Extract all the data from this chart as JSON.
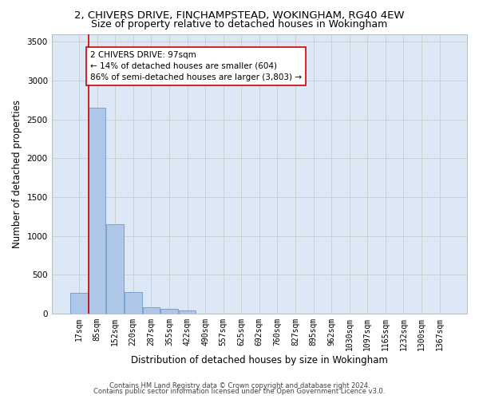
{
  "title1": "2, CHIVERS DRIVE, FINCHAMPSTEAD, WOKINGHAM, RG40 4EW",
  "title2": "Size of property relative to detached houses in Wokingham",
  "xlabel": "Distribution of detached houses by size in Wokingham",
  "ylabel": "Number of detached properties",
  "footnote1": "Contains HM Land Registry data © Crown copyright and database right 2024.",
  "footnote2": "Contains public sector information licensed under the Open Government Licence v3.0.",
  "bin_labels": [
    "17sqm",
    "85sqm",
    "152sqm",
    "220sqm",
    "287sqm",
    "355sqm",
    "422sqm",
    "490sqm",
    "557sqm",
    "625sqm",
    "692sqm",
    "760sqm",
    "827sqm",
    "895sqm",
    "962sqm",
    "1030sqm",
    "1097sqm",
    "1165sqm",
    "1232sqm",
    "1300sqm",
    "1367sqm"
  ],
  "bar_values": [
    270,
    2650,
    1150,
    280,
    80,
    60,
    45,
    0,
    0,
    0,
    0,
    0,
    0,
    0,
    0,
    0,
    0,
    0,
    0,
    0,
    0
  ],
  "bar_color": "#aec6e8",
  "bar_edge_color": "#5a8fc2",
  "property_line_color": "#cc0000",
  "annotation_line1": "2 CHIVERS DRIVE: 97sqm",
  "annotation_line2": "← 14% of detached houses are smaller (604)",
  "annotation_line3": "86% of semi-detached houses are larger (3,803) →",
  "annotation_box_color": "#ffffff",
  "annotation_box_edge": "#cc0000",
  "ylim": [
    0,
    3600
  ],
  "yticks": [
    0,
    500,
    1000,
    1500,
    2000,
    2500,
    3000,
    3500
  ],
  "grid_color": "#cccccc",
  "bg_color": "#dce8f5",
  "title1_fontsize": 9.5,
  "title2_fontsize": 9,
  "axis_label_fontsize": 8.5,
  "tick_fontsize": 7,
  "annotation_fontsize": 7.5,
  "footnote_fontsize": 6
}
